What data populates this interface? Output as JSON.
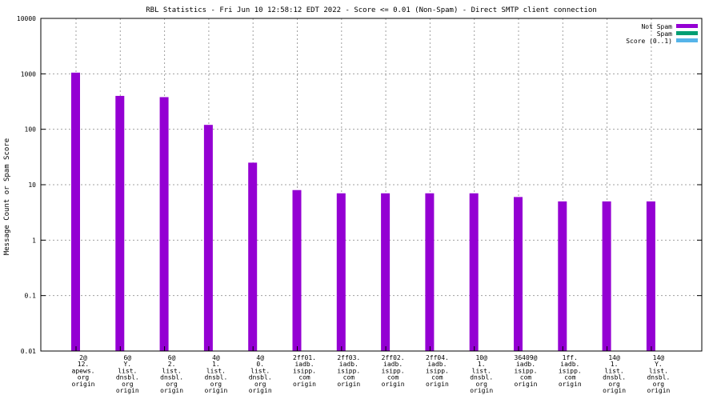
{
  "chart_data": {
    "type": "bar",
    "title": "RBL Statistics - Fri Jun 10 12:58:12 EDT 2022 - Score <= 0.01 (Non-Spam) - Direct SMTP client connection",
    "xlabel": "",
    "ylabel": "Message Count or Spam Score",
    "yscale": "log",
    "ylim": [
      0.01,
      10000
    ],
    "yticks": [
      "0.01",
      "0.1",
      "1",
      "10",
      "100",
      "1000",
      "10000"
    ],
    "grid": true,
    "legend_position": "top-right",
    "categories": [
      "2@\n12.\napews.\norg\norigin",
      "6@\nY.\nlist.\ndnsbl.\norg\norigin",
      "6@\n2.\nlist.\ndnsbl.\norg\norigin",
      "4@\n1.\nlist.\ndnsbl.\norg\norigin",
      "4@\n0.\nlist.\ndnsbl.\norg\norigin",
      "2ff01.\niadb.\nisipp.\ncom\norigin",
      "2ff03.\niadb.\nisipp.\ncom\norigin",
      "2ff02.\niadb.\nisipp.\ncom\norigin",
      "2ff04.\niadb.\nisipp.\ncom\norigin",
      "10@\n1.\nlist.\ndnsbl.\norg\norigin",
      "36409@\niadb.\nisipp.\ncom\norigin",
      "1ff.\niadb.\nisipp.\ncom\norigin",
      "14@\n1.\nlist.\ndnsbl.\norg\norigin",
      "14@\nY.\nlist.\ndnsbl.\norg\norigin"
    ],
    "series": [
      {
        "name": "Not Spam",
        "color": "#9400d3",
        "values": [
          1050,
          400,
          380,
          120,
          25,
          8,
          7,
          7,
          7,
          7,
          6,
          5,
          5,
          5
        ]
      },
      {
        "name": "Spam",
        "color": "#009e73",
        "values": [
          0,
          0,
          0,
          0,
          0,
          0,
          0,
          0,
          0,
          0,
          0,
          0,
          0,
          0
        ]
      },
      {
        "name": "Score (0..1)",
        "color": "#56b4e9",
        "values": [
          0,
          0,
          0,
          0,
          0,
          0,
          0,
          0,
          0,
          0,
          0,
          0,
          0,
          0
        ]
      }
    ]
  }
}
